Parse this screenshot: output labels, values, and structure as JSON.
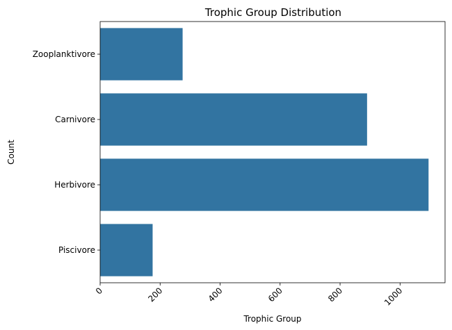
{
  "chart_data": {
    "type": "bar",
    "orientation": "horizontal",
    "title": "Trophic Group Distribution",
    "xlabel": "Trophic Group",
    "ylabel": "Count",
    "categories": [
      "Zooplanktivore",
      "Carnivore",
      "Herbivore",
      "Piscivore"
    ],
    "values": [
      275,
      890,
      1095,
      175
    ],
    "xlim": [
      0,
      1150
    ],
    "xticks": [
      0,
      200,
      400,
      600,
      800,
      1000
    ],
    "xtick_rotation": 45,
    "grid": false,
    "bar_color": "#3274a1"
  }
}
